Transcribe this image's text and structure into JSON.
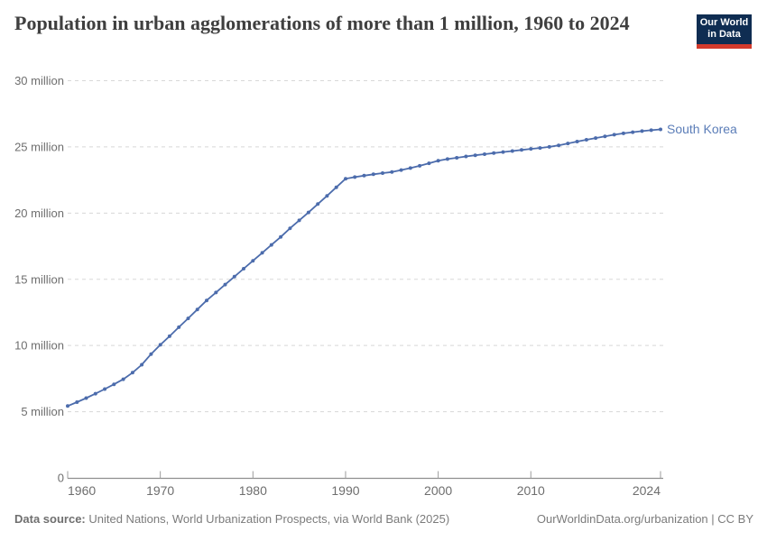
{
  "header": {
    "title": "Population in urban agglomerations of more than 1 million, 1960 to 2024",
    "logo": {
      "line1": "Our World",
      "line2": "in Data"
    }
  },
  "chart_data": {
    "type": "line",
    "title": "Population in urban agglomerations of more than 1 million, 1960 to 2024",
    "entity": "South Korea",
    "unit": "people (millions)",
    "xlim": [
      1960,
      2024
    ],
    "ylim": [
      0,
      30
    ],
    "grid": "horizontal-dashed",
    "legend_position": "line-end-label",
    "x_ticks": [
      {
        "year": 1960,
        "label": "1960"
      },
      {
        "year": 1970,
        "label": "1970"
      },
      {
        "year": 1980,
        "label": "1980"
      },
      {
        "year": 1990,
        "label": "1990"
      },
      {
        "year": 2000,
        "label": "2000"
      },
      {
        "year": 2010,
        "label": "2010"
      },
      {
        "year": 2024,
        "label": "2024"
      }
    ],
    "y_ticks": [
      {
        "value": 0,
        "label": "0"
      },
      {
        "value": 5,
        "label": "5 million"
      },
      {
        "value": 10,
        "label": "10 million"
      },
      {
        "value": 15,
        "label": "15 million"
      },
      {
        "value": 20,
        "label": "20 million"
      },
      {
        "value": 25,
        "label": "25 million"
      },
      {
        "value": 30,
        "label": "30 million"
      }
    ],
    "series": [
      {
        "name": "South Korea",
        "color": "#4c6cac",
        "label_color": "#5b7db8",
        "years": [
          1960,
          1961,
          1962,
          1963,
          1964,
          1965,
          1966,
          1967,
          1968,
          1969,
          1970,
          1971,
          1972,
          1973,
          1974,
          1975,
          1976,
          1977,
          1978,
          1979,
          1980,
          1981,
          1982,
          1983,
          1984,
          1985,
          1986,
          1987,
          1988,
          1989,
          1990,
          1991,
          1992,
          1993,
          1994,
          1995,
          1996,
          1997,
          1998,
          1999,
          2000,
          2001,
          2002,
          2003,
          2004,
          2005,
          2006,
          2007,
          2008,
          2009,
          2010,
          2011,
          2012,
          2013,
          2014,
          2015,
          2016,
          2017,
          2018,
          2019,
          2020,
          2021,
          2022,
          2023,
          2024
        ],
        "values": [
          5.43,
          5.72,
          6.03,
          6.36,
          6.71,
          7.07,
          7.45,
          7.95,
          8.55,
          9.35,
          10.05,
          10.7,
          11.38,
          12.05,
          12.72,
          13.4,
          14.0,
          14.6,
          15.2,
          15.8,
          16.4,
          17.0,
          17.6,
          18.2,
          18.85,
          19.45,
          20.05,
          20.68,
          21.3,
          21.95,
          22.6,
          22.72,
          22.83,
          22.93,
          23.02,
          23.1,
          23.25,
          23.4,
          23.57,
          23.76,
          23.95,
          24.08,
          24.18,
          24.28,
          24.37,
          24.45,
          24.53,
          24.61,
          24.69,
          24.77,
          24.85,
          24.92,
          25.0,
          25.12,
          25.26,
          25.4,
          25.54,
          25.67,
          25.8,
          25.92,
          26.02,
          26.11,
          26.19,
          26.26,
          26.32
        ]
      }
    ]
  },
  "footer": {
    "source_label": "Data source:",
    "source_text": " United Nations, World Urbanization Prospects, via World Bank (2025)",
    "credit": "OurWorldinData.org/urbanization | CC BY"
  },
  "colors": {
    "grid": "#d8d8d8",
    "axis_line": "#8f8f8f",
    "tick": "#9c9c9c",
    "axis_text": "#6e6e6e",
    "title_text": "#3f3f3f",
    "logo_bg": "#0f2d52",
    "logo_red": "#d33a2c"
  }
}
